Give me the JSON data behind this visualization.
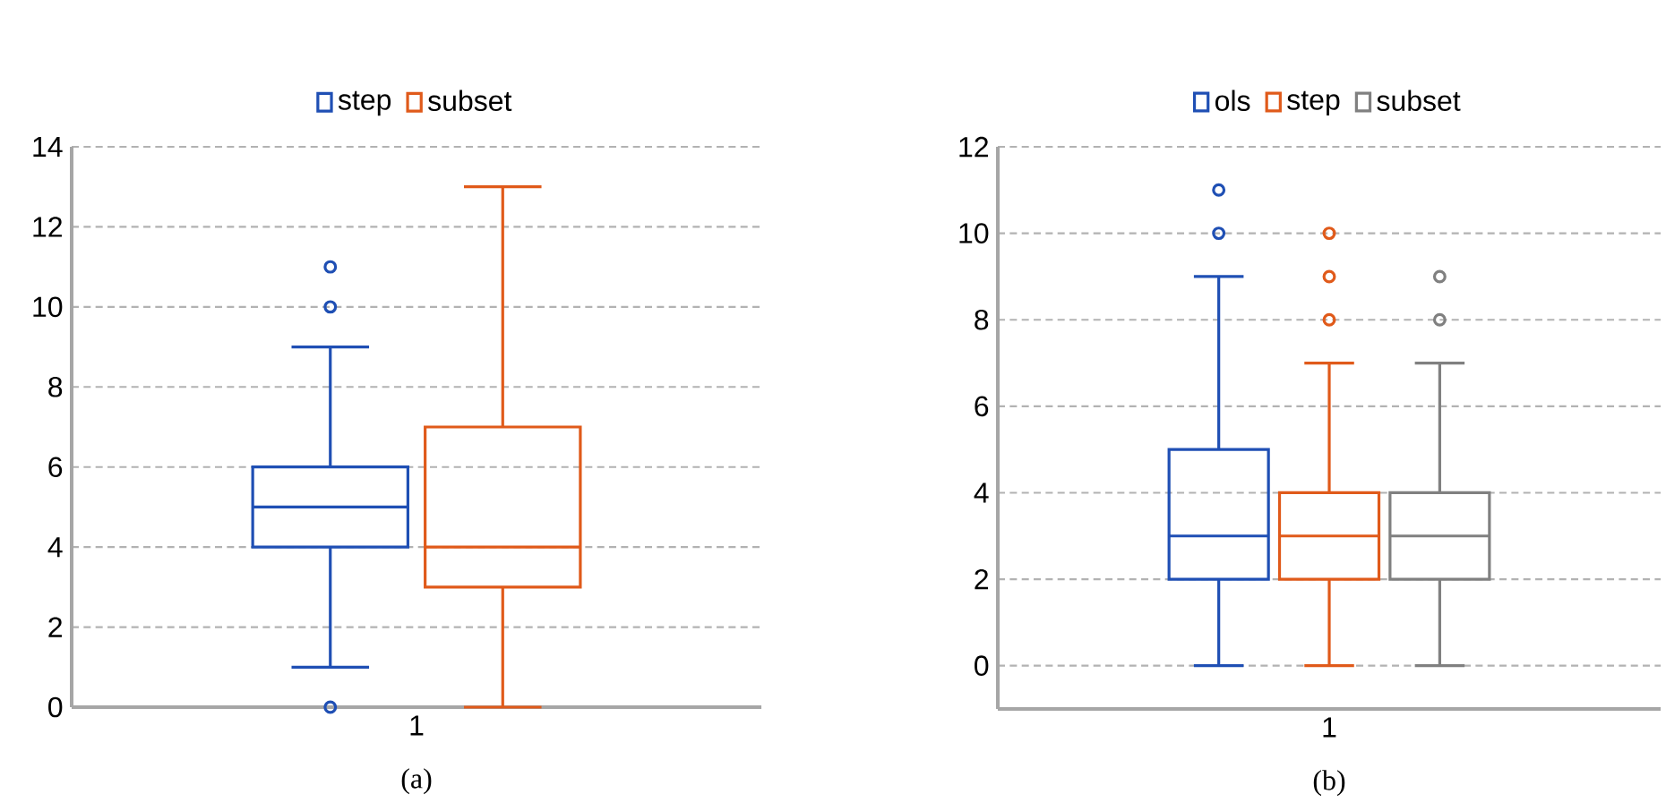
{
  "chart_data": [
    {
      "type": "box",
      "categories": [
        "1"
      ],
      "series": [
        {
          "name": "step",
          "color": "#1f4fb4",
          "boxes": [
            {
              "low": 1,
              "q1": 4,
              "median": 5,
              "q3": 6,
              "high": 9,
              "outliers": [
                0,
                10,
                11
              ]
            }
          ]
        },
        {
          "name": "subset",
          "color": "#e05a1a",
          "boxes": [
            {
              "low": 0,
              "q1": 3,
              "median": 4,
              "q3": 7,
              "high": 13
            }
          ]
        }
      ],
      "ylim": [
        0,
        14
      ],
      "yticks": [
        0,
        2,
        4,
        6,
        8,
        10,
        12,
        14
      ],
      "grid": "y",
      "legend": "top",
      "marker": "circle",
      "annotations": [
        "(a)"
      ]
    },
    {
      "type": "box",
      "categories": [
        "1"
      ],
      "series": [
        {
          "name": "ols",
          "color": "#1f4fb4",
          "boxes": [
            {
              "low": 0,
              "q1": 2,
              "median": 3,
              "q3": 5,
              "high": 9,
              "outliers": [
                10,
                11
              ]
            }
          ]
        },
        {
          "name": "step",
          "color": "#e05a1a",
          "boxes": [
            {
              "low": 0,
              "q1": 2,
              "median": 3,
              "q3": 4,
              "high": 7,
              "outliers": [
                8,
                9,
                10
              ]
            }
          ]
        },
        {
          "name": "subset",
          "color": "#808080",
          "boxes": [
            {
              "low": 0,
              "q1": 2,
              "median": 3,
              "q3": 4,
              "high": 7,
              "outliers": [
                8,
                9
              ]
            }
          ]
        }
      ],
      "ylim": [
        -1,
        12
      ],
      "yticks": [
        0,
        2,
        4,
        6,
        8,
        10,
        12
      ],
      "grid": "y",
      "legend": "top",
      "marker": "circle",
      "annotations": [
        "(b)"
      ]
    }
  ]
}
